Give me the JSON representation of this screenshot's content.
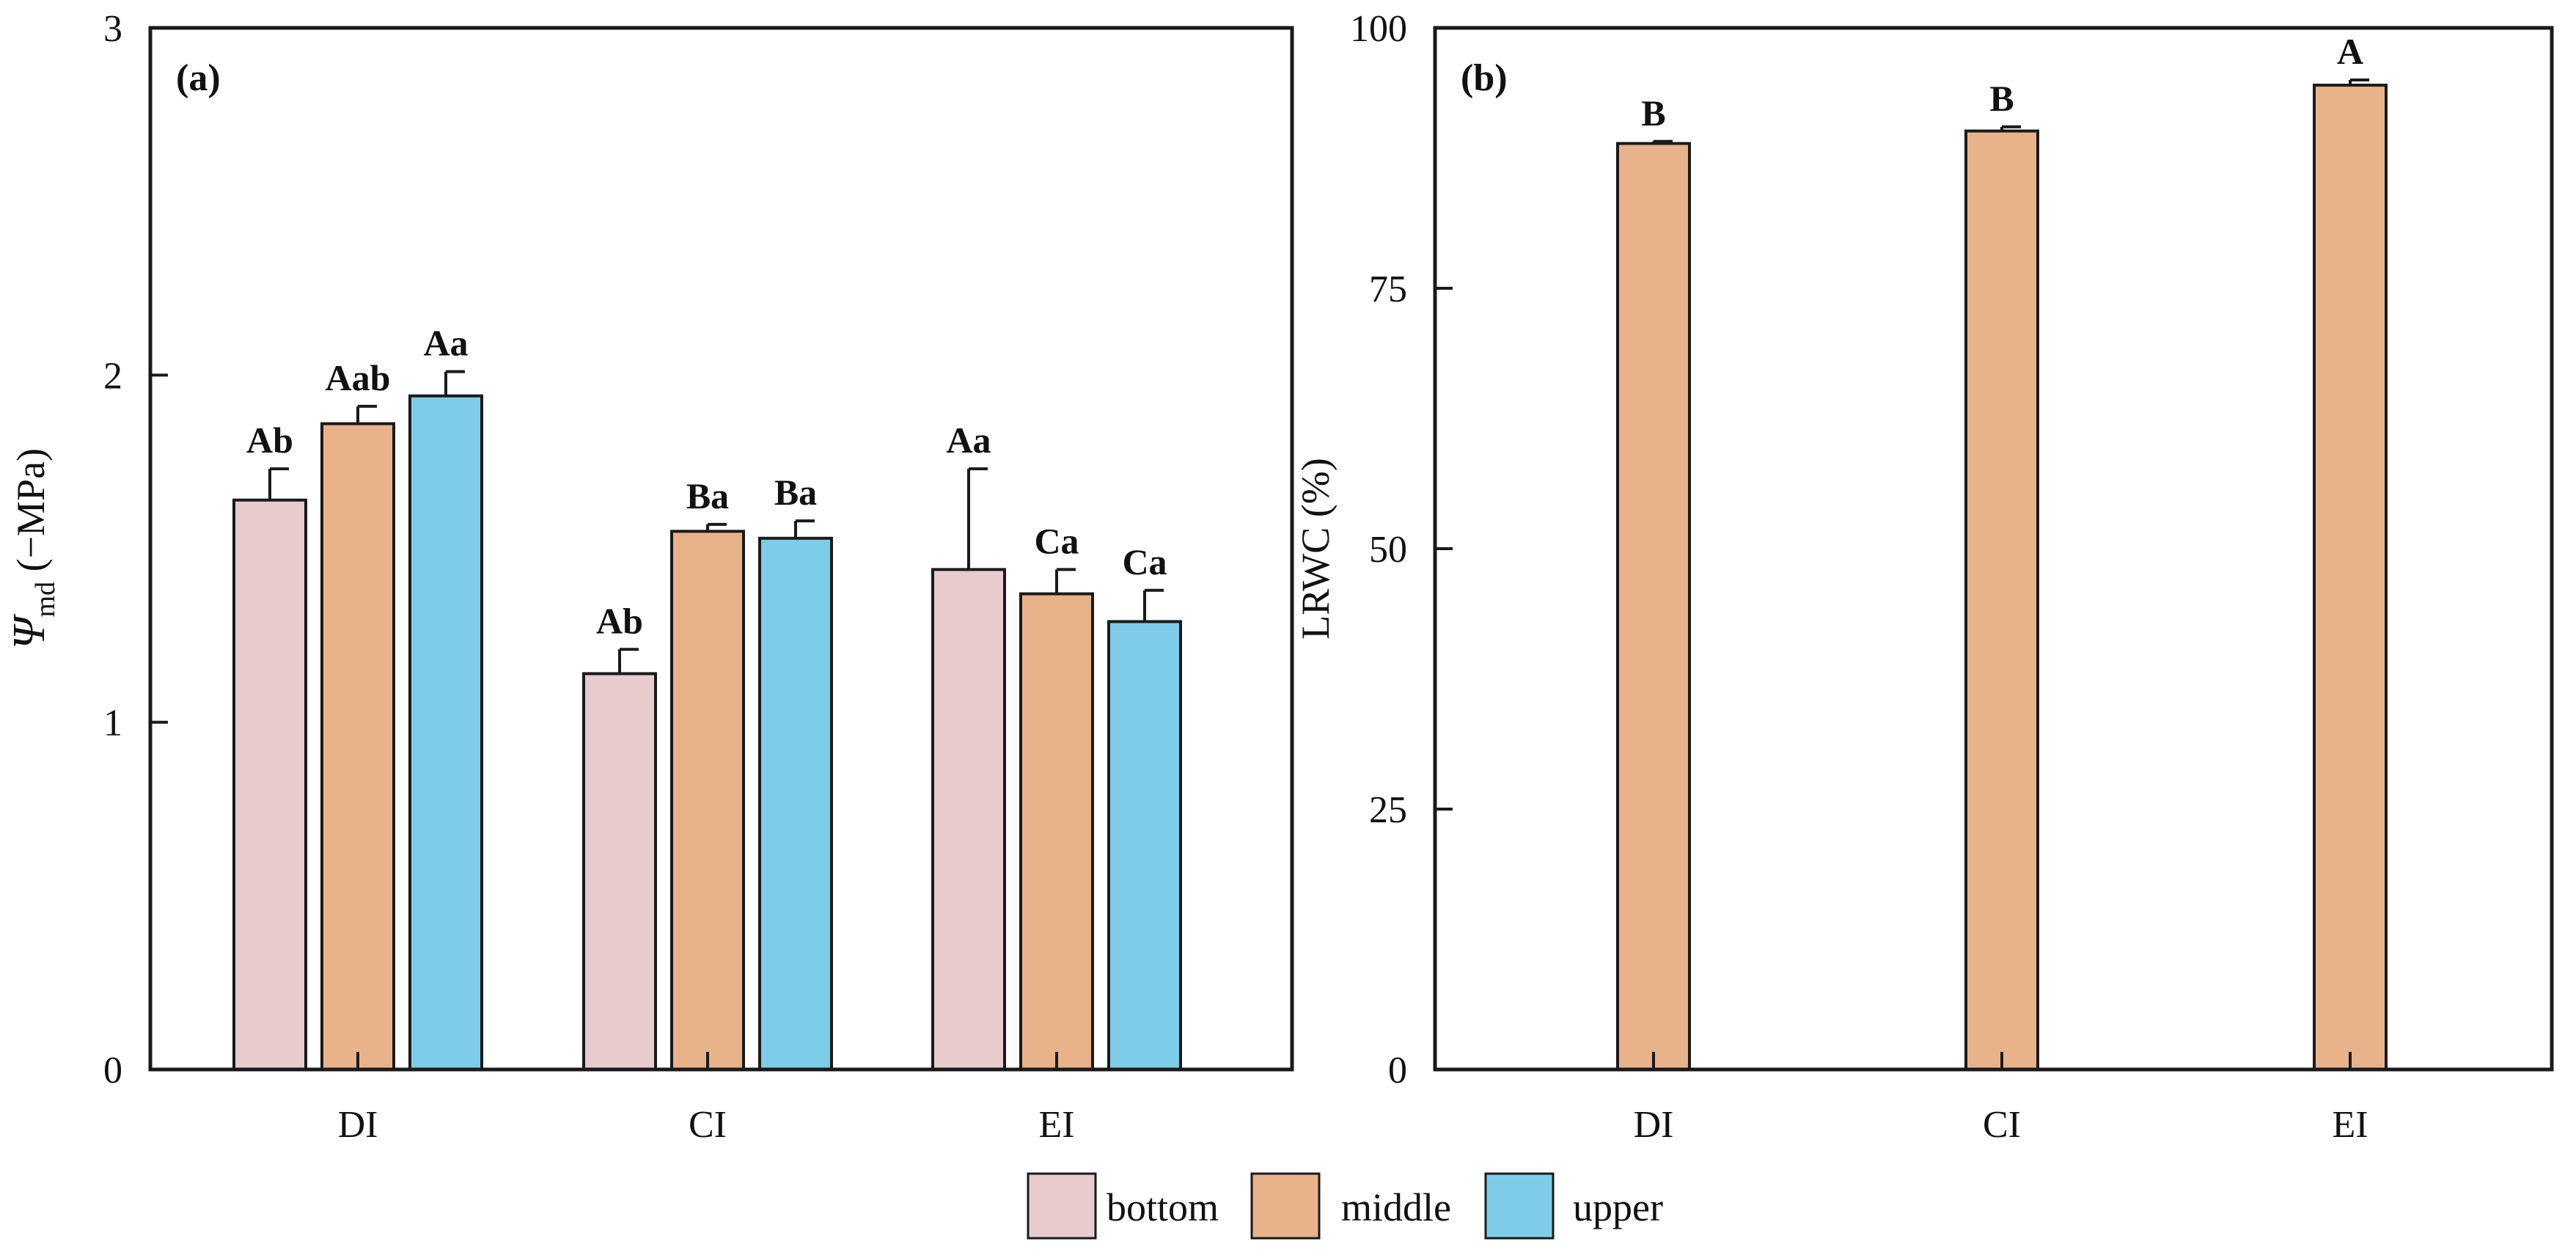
{
  "colors": {
    "bottom": "#e8cbcc",
    "middle": "#e8b38a",
    "upper": "#7ecde8",
    "stroke": "#1a1a1a"
  },
  "chart_data": [
    {
      "panel": "(a)",
      "type": "bar",
      "ylabel_symbol": "Ψ",
      "ylabel_sub": "md",
      "ylabel_rest": "(−MPa)",
      "ylim": [
        0,
        3
      ],
      "yticks": [
        "0",
        "1",
        "2",
        "3"
      ],
      "categories": [
        "DI",
        "CI",
        "EI"
      ],
      "series": [
        {
          "name": "bottom",
          "values": [
            1.64,
            1.14,
            1.44
          ],
          "errors": [
            0.09,
            0.07,
            0.29
          ],
          "labels": [
            "Ab",
            "Ab",
            "Aa"
          ]
        },
        {
          "name": "middle",
          "values": [
            1.86,
            1.55,
            1.37
          ],
          "errors": [
            0.05,
            0.02,
            0.07
          ],
          "labels": [
            "Aab",
            "Ba",
            "Ca"
          ]
        },
        {
          "name": "upper",
          "values": [
            1.94,
            1.53,
            1.29
          ],
          "errors": [
            0.07,
            0.05,
            0.09
          ],
          "labels": [
            "Aa",
            "Ba",
            "Ca"
          ]
        }
      ]
    },
    {
      "panel": "(b)",
      "type": "bar",
      "ylabel": "LRWC (%)",
      "ylim": [
        0,
        100
      ],
      "yticks": [
        "0",
        "25",
        "50",
        "75",
        "100"
      ],
      "categories": [
        "DI",
        "CI",
        "EI"
      ],
      "series": [
        {
          "name": "middle",
          "values": [
            88.9,
            90.1,
            94.5
          ],
          "errors": [
            0.2,
            0.4,
            0.5
          ],
          "labels": [
            "B",
            "B",
            "A"
          ]
        }
      ]
    }
  ],
  "legend": [
    {
      "key": "bottom",
      "label": "bottom"
    },
    {
      "key": "middle",
      "label": "middle"
    },
    {
      "key": "upper",
      "label": "upper"
    }
  ]
}
